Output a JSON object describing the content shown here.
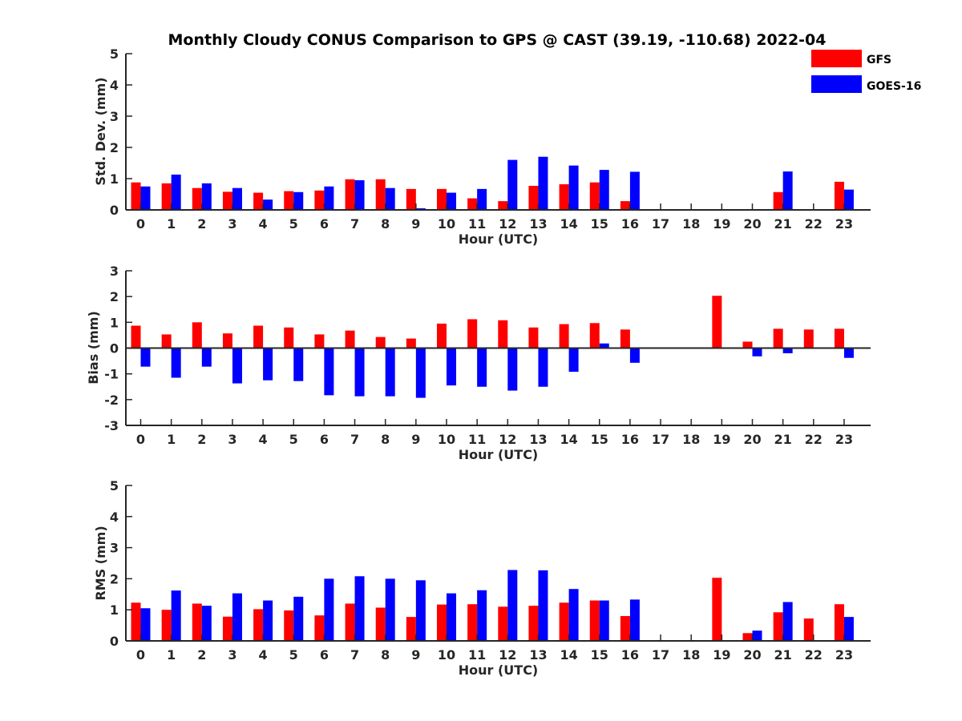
{
  "title": "Monthly Cloudy CONUS Comparison to GPS @ CAST (39.19, -110.68) 2022-04",
  "colors": {
    "GFS": "#ff0000",
    "GOES-16": "#0000ff",
    "axis": "#262626"
  },
  "legend": {
    "placement": "top-right",
    "entries": [
      "GFS",
      "GOES-16"
    ]
  },
  "chart_data": [
    {
      "type": "bar",
      "xlabel": "Hour (UTC)",
      "ylabel": "Std. Dev. (mm)",
      "ylim": [
        0,
        5
      ],
      "yticks": [
        0,
        1,
        2,
        3,
        4,
        5
      ],
      "categories": [
        "0",
        "1",
        "2",
        "3",
        "4",
        "5",
        "6",
        "7",
        "8",
        "9",
        "10",
        "11",
        "12",
        "13",
        "14",
        "15",
        "16",
        "17",
        "18",
        "19",
        "20",
        "21",
        "22",
        "23"
      ],
      "series": [
        {
          "name": "GFS",
          "values": [
            0.88,
            0.85,
            0.7,
            0.58,
            0.55,
            0.6,
            0.62,
            0.98,
            0.98,
            0.67,
            0.67,
            0.37,
            0.28,
            0.77,
            0.82,
            0.88,
            0.28,
            null,
            null,
            null,
            null,
            0.57,
            null,
            0.9
          ]
        },
        {
          "name": "GOES-16",
          "values": [
            0.75,
            1.13,
            0.85,
            0.7,
            0.33,
            0.57,
            0.75,
            0.95,
            0.7,
            0.05,
            0.55,
            0.67,
            1.6,
            1.7,
            1.42,
            1.28,
            1.22,
            null,
            null,
            null,
            null,
            1.23,
            null,
            0.65
          ]
        }
      ]
    },
    {
      "type": "bar",
      "xlabel": "Hour (UTC)",
      "ylabel": "Bias (mm)",
      "ylim": [
        -3,
        3
      ],
      "yticks": [
        -3,
        -2,
        -1,
        0,
        1,
        2,
        3
      ],
      "categories": [
        "0",
        "1",
        "2",
        "3",
        "4",
        "5",
        "6",
        "7",
        "8",
        "9",
        "10",
        "11",
        "12",
        "13",
        "14",
        "15",
        "16",
        "17",
        "18",
        "19",
        "20",
        "21",
        "22",
        "23"
      ],
      "series": [
        {
          "name": "GFS",
          "values": [
            0.87,
            0.53,
            1.0,
            0.57,
            0.87,
            0.8,
            0.53,
            0.68,
            0.43,
            0.37,
            0.95,
            1.12,
            1.08,
            0.8,
            0.93,
            0.97,
            0.72,
            null,
            null,
            2.03,
            0.25,
            0.75,
            0.72,
            0.75
          ]
        },
        {
          "name": "GOES-16",
          "values": [
            -0.72,
            -1.15,
            -0.72,
            -1.37,
            -1.25,
            -1.28,
            -1.83,
            -1.87,
            -1.87,
            -1.93,
            -1.45,
            -1.5,
            -1.65,
            -1.5,
            -0.92,
            0.18,
            -0.57,
            null,
            null,
            null,
            -0.32,
            -0.2,
            null,
            -0.38
          ]
        }
      ]
    },
    {
      "type": "bar",
      "xlabel": "Hour (UTC)",
      "ylabel": "RMS (mm)",
      "ylim": [
        0,
        5
      ],
      "yticks": [
        0,
        1,
        2,
        3,
        4,
        5
      ],
      "categories": [
        "0",
        "1",
        "2",
        "3",
        "4",
        "5",
        "6",
        "7",
        "8",
        "9",
        "10",
        "11",
        "12",
        "13",
        "14",
        "15",
        "16",
        "17",
        "18",
        "19",
        "20",
        "21",
        "22",
        "23"
      ],
      "series": [
        {
          "name": "GFS",
          "values": [
            1.23,
            1.0,
            1.2,
            0.78,
            1.02,
            0.98,
            0.82,
            1.2,
            1.07,
            0.77,
            1.17,
            1.18,
            1.1,
            1.13,
            1.23,
            1.3,
            0.8,
            null,
            null,
            2.03,
            0.25,
            0.92,
            0.72,
            1.18
          ]
        },
        {
          "name": "GOES-16",
          "values": [
            1.05,
            1.62,
            1.13,
            1.53,
            1.3,
            1.42,
            2.0,
            2.08,
            2.0,
            1.95,
            1.53,
            1.63,
            2.28,
            2.27,
            1.67,
            1.3,
            1.33,
            null,
            null,
            null,
            0.33,
            1.25,
            null,
            0.77
          ]
        }
      ]
    }
  ]
}
